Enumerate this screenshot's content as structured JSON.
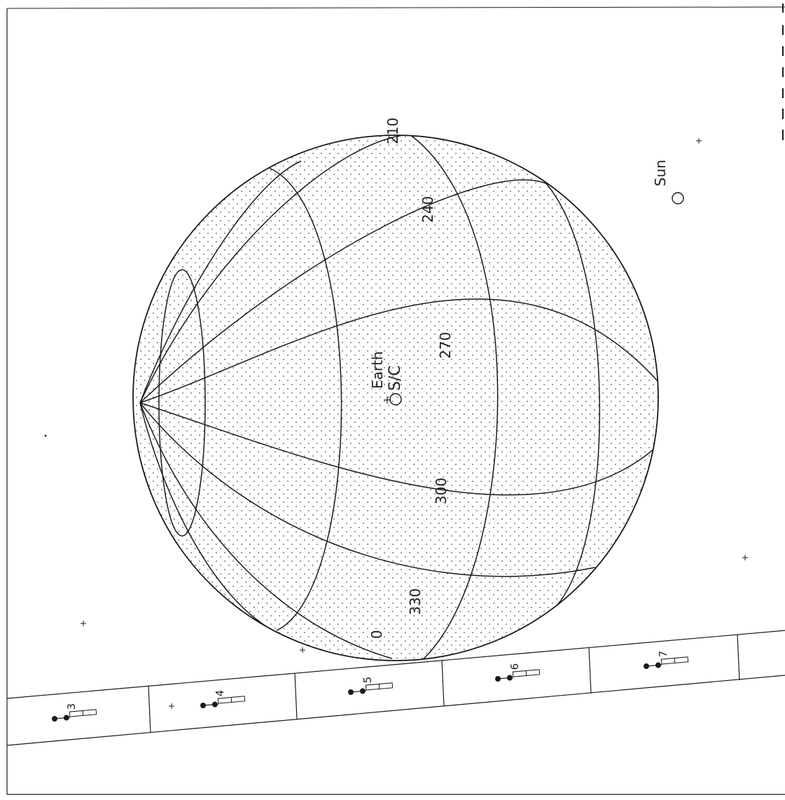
{
  "colors": {
    "ink": "#1a1a1a",
    "dots": "#555555",
    "background": "#ffffff"
  },
  "labels": {
    "sun": "Sun",
    "earth": "Earth",
    "spacecraft": "S/C"
  },
  "longitude_labels": [
    "210",
    "240",
    "270",
    "300",
    "330",
    "0"
  ],
  "timeline_ticks": [
    "3",
    "4",
    "5",
    "6",
    "7"
  ]
}
